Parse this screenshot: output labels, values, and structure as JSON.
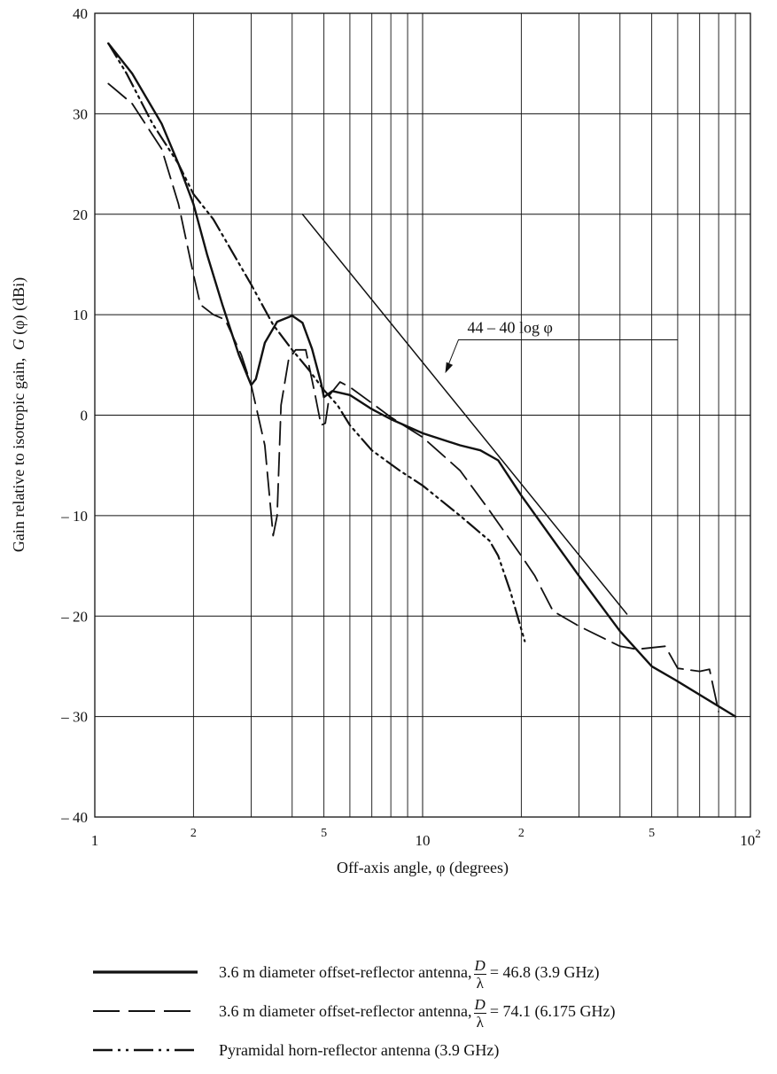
{
  "chart_data": {
    "type": "line",
    "xscale": "log",
    "xlim": [
      1,
      100
    ],
    "ylim": [
      -40,
      40
    ],
    "grid": true,
    "xlabel": "Off-axis angle, φ (degrees)",
    "ylabel_parts": {
      "prefix": "Gain relative to isotropic gain,",
      "G": "G",
      "suffix": " (φ) (dBi)"
    },
    "y_ticks": [
      {
        "v": 40,
        "label": "40"
      },
      {
        "v": 30,
        "label": "30"
      },
      {
        "v": 20,
        "label": "20"
      },
      {
        "v": 10,
        "label": "10"
      },
      {
        "v": 0,
        "label": "0"
      },
      {
        "v": -10,
        "label": "– 10"
      },
      {
        "v": -20,
        "label": "– 20"
      },
      {
        "v": -30,
        "label": "– 30"
      },
      {
        "v": -40,
        "label": "– 40"
      }
    ],
    "x_major_ticks": [
      {
        "v": 1,
        "label": "1"
      },
      {
        "v": 10,
        "label": "10"
      },
      {
        "v": 100,
        "label": "10",
        "sup": "2"
      }
    ],
    "x_minor_labels": [
      {
        "v": 2,
        "label": "2"
      },
      {
        "v": 5,
        "label": "5"
      },
      {
        "v": 20,
        "label": "2"
      },
      {
        "v": 50,
        "label": "5"
      }
    ],
    "annotation": {
      "text": "44 – 40 log φ",
      "arrow_to": [
        11.5,
        4
      ]
    },
    "series": [
      {
        "name": "3.6 m diameter offset-reflector antenna, D/λ = 46.8 (3.9 GHz)",
        "style": "solid",
        "points": [
          [
            1.1,
            37
          ],
          [
            1.3,
            34
          ],
          [
            1.6,
            29
          ],
          [
            1.8,
            25
          ],
          [
            2.0,
            21
          ],
          [
            2.2,
            16
          ],
          [
            2.45,
            11
          ],
          [
            2.75,
            6
          ],
          [
            3.0,
            3
          ],
          [
            3.1,
            3.6
          ],
          [
            3.3,
            7.2
          ],
          [
            3.6,
            9.3
          ],
          [
            4.0,
            9.9
          ],
          [
            4.3,
            9.2
          ],
          [
            4.6,
            6.6
          ],
          [
            4.9,
            3.2
          ],
          [
            5.0,
            1.8
          ],
          [
            5.3,
            2.4
          ],
          [
            6.0,
            2.0
          ],
          [
            7.0,
            0.6
          ],
          [
            8.0,
            -0.4
          ],
          [
            10.0,
            -1.8
          ],
          [
            13.0,
            -3.0
          ],
          [
            15.0,
            -3.5
          ],
          [
            17.0,
            -4.5
          ],
          [
            20.0,
            -8.0
          ],
          [
            30.0,
            -16.0
          ],
          [
            40.0,
            -21.5
          ],
          [
            50.0,
            -25.0
          ],
          [
            60.0,
            -26.5
          ],
          [
            90.0,
            -30
          ]
        ]
      },
      {
        "name": "3.6 m diameter offset-reflector antenna, D/λ = 74.1 (6.175 GHz)",
        "style": "dashed",
        "points": [
          [
            1.1,
            33
          ],
          [
            1.3,
            31
          ],
          [
            1.6,
            26.5
          ],
          [
            1.8,
            21
          ],
          [
            2.0,
            14
          ],
          [
            2.1,
            11
          ],
          [
            2.3,
            10
          ],
          [
            2.5,
            9.5
          ],
          [
            2.8,
            6
          ],
          [
            3.0,
            3
          ],
          [
            3.3,
            -3
          ],
          [
            3.5,
            -12
          ],
          [
            3.6,
            -10
          ],
          [
            3.7,
            1
          ],
          [
            3.9,
            5.5
          ],
          [
            4.1,
            6.5
          ],
          [
            4.4,
            6.5
          ],
          [
            4.7,
            2
          ],
          [
            4.9,
            -1
          ],
          [
            5.05,
            -0.8
          ],
          [
            5.2,
            2
          ],
          [
            5.6,
            3.3
          ],
          [
            6.0,
            2.8
          ],
          [
            7.0,
            1.2
          ],
          [
            8.0,
            -0.2
          ],
          [
            10.0,
            -2.2
          ],
          [
            13.0,
            -5.5
          ],
          [
            16.0,
            -9.5
          ],
          [
            20.0,
            -14.0
          ],
          [
            22.0,
            -16.0
          ],
          [
            25.0,
            -19.5
          ],
          [
            30.0,
            -21.0
          ],
          [
            40.0,
            -23.0
          ],
          [
            45.0,
            -23.3
          ],
          [
            55.0,
            -23.0
          ],
          [
            60.0,
            -25.2
          ],
          [
            70.0,
            -25.5
          ],
          [
            75.0,
            -25.3
          ],
          [
            80.0,
            -29.5
          ]
        ]
      },
      {
        "name": "Pyramidal horn-reflector antenna (3.9 GHz)",
        "style": "dashdotdot",
        "points": [
          [
            1.1,
            37
          ],
          [
            1.25,
            34
          ],
          [
            1.5,
            29
          ],
          [
            1.8,
            25
          ],
          [
            2.0,
            22
          ],
          [
            2.3,
            19.5
          ],
          [
            2.6,
            16.5
          ],
          [
            3.0,
            13
          ],
          [
            3.5,
            9
          ],
          [
            4.0,
            6.5
          ],
          [
            4.5,
            4.5
          ],
          [
            5.0,
            2.5
          ],
          [
            5.5,
            1.0
          ],
          [
            6.0,
            -1.0
          ],
          [
            7.0,
            -3.5
          ],
          [
            8.5,
            -5.5
          ],
          [
            10.0,
            -7.0
          ],
          [
            13.0,
            -10.0
          ],
          [
            16.0,
            -12.5
          ],
          [
            17.0,
            -14.0
          ],
          [
            18.5,
            -17.5
          ],
          [
            20.5,
            -22.5
          ]
        ]
      },
      {
        "name": "44 – 40 log φ",
        "style": "solid-thin",
        "points": [
          [
            4.3,
            20
          ],
          [
            42,
            -19.8
          ]
        ]
      }
    ]
  },
  "legend": [
    {
      "style": "solid",
      "text_before": "3.6 m diameter offset-reflector antenna,",
      "frac_num": "D",
      "frac_den": "λ",
      "text_after": "= 46.8 (3.9 GHz)"
    },
    {
      "style": "dashed",
      "text_before": "3.6 m diameter offset-reflector antenna,",
      "frac_num": "D",
      "frac_den": "λ",
      "text_after": "= 74.1 (6.175 GHz)"
    },
    {
      "style": "dashdotdot",
      "text_before": "Pyramidal horn-reflector antenna (3.9 GHz)"
    }
  ]
}
